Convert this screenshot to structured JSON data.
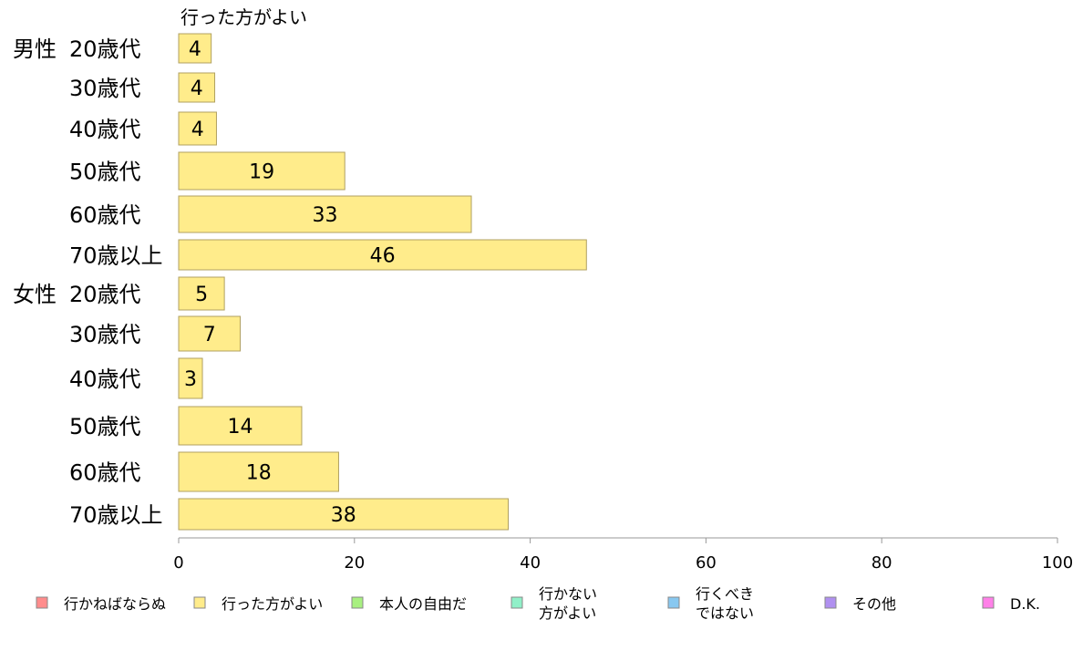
{
  "chart_data": {
    "type": "bar",
    "orientation": "horizontal",
    "title": "行った方がよい",
    "groups": [
      {
        "name": "男性",
        "start": 0
      },
      {
        "name": "女性",
        "start": 6
      }
    ],
    "categories": [
      "20歳代",
      "30歳代",
      "40歳代",
      "50歳代",
      "60歳代",
      "70歳以上",
      "20歳代",
      "30歳代",
      "40歳代",
      "50歳代",
      "60歳代",
      "70歳以上"
    ],
    "values": [
      3.7,
      4.1,
      4.3,
      18.9,
      33.3,
      46.4,
      5.2,
      7.0,
      2.7,
      14.0,
      18.2,
      37.5
    ],
    "value_labels": [
      "4",
      "4",
      "4",
      "19",
      "33",
      "46",
      "5",
      "7",
      "3",
      "14",
      "18",
      "38"
    ],
    "xlim": [
      0,
      100
    ],
    "xticks": [
      "0",
      "20",
      "40",
      "60",
      "80",
      "100"
    ],
    "bar_color": "#ffec8b",
    "bar_stroke": "#b0a060",
    "legend": {
      "placement": "bottom",
      "items": [
        {
          "label": "行かねばならぬ",
          "color": "#ff8c8c"
        },
        {
          "label": "行った方がよい",
          "color": "#ffec8b"
        },
        {
          "label": "本人の自由だ",
          "color": "#a8f080"
        },
        {
          "label": "行かない\n方がよい",
          "color": "#90f0c8"
        },
        {
          "label": "行くべき\nではない",
          "color": "#88c8f0"
        },
        {
          "label": "その他",
          "color": "#b090f0"
        },
        {
          "label": "D.K.",
          "color": "#ff80e8"
        }
      ]
    }
  }
}
